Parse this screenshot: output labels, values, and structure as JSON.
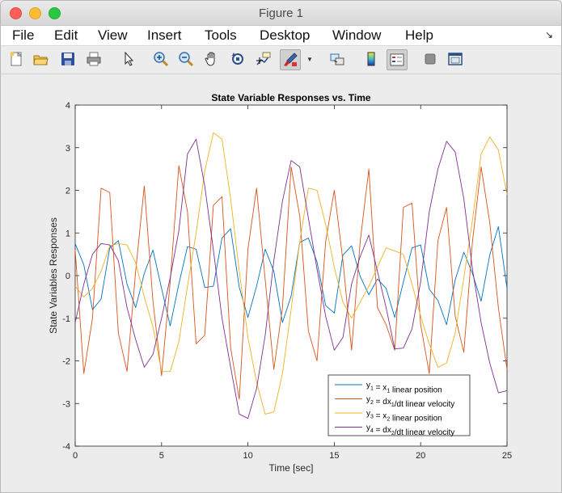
{
  "window": {
    "title": "Figure 1"
  },
  "menu": {
    "items": [
      "File",
      "Edit",
      "View",
      "Insert",
      "Tools",
      "Desktop",
      "Window",
      "Help"
    ],
    "overflow_icon": "chevron-down-icon"
  },
  "toolbar": {
    "icons": [
      "new-figure-icon",
      "open-file-icon",
      "save-icon",
      "print-icon",
      "pointer-icon",
      "zoom-in-icon",
      "zoom-out-icon",
      "pan-hand-icon",
      "rotate-3d-icon",
      "data-cursor-icon",
      "brush-icon",
      "link-plot-icon",
      "colorbar-icon",
      "legend-icon",
      "hide-plot-tools-icon",
      "show-plot-tools-icon"
    ]
  },
  "colors": {
    "y1": "#0072bd",
    "y2": "#d95319",
    "y3": "#edb120",
    "y4": "#7e2f8e"
  },
  "chart_data": {
    "type": "line",
    "title": "State Variable Responses vs. Time",
    "xlabel": "Time [sec]",
    "ylabel": "State Variables Responses",
    "xlim": [
      0,
      25
    ],
    "ylim": [
      -4,
      4
    ],
    "xticks": [
      "0",
      "5",
      "10",
      "15",
      "20",
      "25"
    ],
    "yticks": [
      "-4",
      "-3",
      "-2",
      "-1",
      "0",
      "1",
      "2",
      "3",
      "4"
    ],
    "grid": false,
    "legend_position": "bottom-right",
    "x": [
      0,
      0.5,
      1,
      1.5,
      2,
      2.5,
      3,
      3.5,
      4,
      4.5,
      5,
      5.5,
      6,
      6.5,
      7,
      7.5,
      8,
      8.5,
      9,
      9.5,
      10,
      10.5,
      11,
      11.5,
      12,
      12.5,
      13,
      13.5,
      14,
      14.5,
      15,
      15.5,
      16,
      16.5,
      17,
      17.5,
      18,
      18.5,
      19,
      19.5,
      20,
      20.5,
      21,
      21.5,
      22,
      22.5,
      23,
      23.5,
      24,
      24.5,
      25
    ],
    "series": [
      {
        "name_main": "y",
        "name_sub": "1",
        "name_rest": " = x",
        "name_rest_sub": "1",
        "name_tail": " linear position",
        "values": [
          0.75,
          0.25,
          -0.8,
          -0.55,
          0.65,
          0.82,
          -0.2,
          -0.75,
          0.05,
          0.6,
          -0.3,
          -1.18,
          -0.2,
          0.68,
          0.62,
          -0.28,
          -0.25,
          0.88,
          1.1,
          -0.28,
          -0.98,
          -0.25,
          0.62,
          0.1,
          -1.1,
          -0.48,
          0.78,
          0.88,
          0.32,
          -0.7,
          -0.88,
          0.48,
          0.7,
          -0.02,
          -0.45,
          -0.08,
          -0.3,
          -0.98,
          -0.15,
          0.65,
          0.72,
          -0.32,
          -0.58,
          -1.15,
          -0.1,
          0.55,
          0.05,
          -0.6,
          0.48,
          1.15,
          -0.3
        ]
      },
      {
        "name_main": "y",
        "name_sub": "2",
        "name_rest": " = dx",
        "name_rest_sub": "1",
        "name_tail": "/dt linear velocity",
        "values": [
          0.6,
          -2.3,
          -1.0,
          2.05,
          1.95,
          -1.35,
          -2.25,
          0.1,
          2.1,
          -0.6,
          -2.35,
          -0.15,
          2.58,
          1.5,
          -1.6,
          -1.4,
          1.65,
          1.85,
          -1.7,
          -2.9,
          0.62,
          2.05,
          -0.1,
          -2.2,
          -0.75,
          2.55,
          1.4,
          -1.3,
          -2.0,
          0.8,
          2.0,
          0.35,
          -1.75,
          0.8,
          2.5,
          -0.75,
          -1.15,
          -1.75,
          1.6,
          1.7,
          -1.15,
          -2.3,
          0.82,
          1.6,
          -0.95,
          -1.8,
          0.8,
          2.55,
          1.25,
          -0.75,
          -2.2
        ]
      },
      {
        "name_main": "y",
        "name_sub": "3",
        "name_rest": " = x",
        "name_rest_sub": "2",
        "name_tail": " linear position",
        "values": [
          -0.25,
          -0.5,
          -0.3,
          0.1,
          0.7,
          0.75,
          0.72,
          0.3,
          -0.5,
          -1.2,
          -2.25,
          -2.25,
          -1.55,
          -0.25,
          1.0,
          2.45,
          3.35,
          3.2,
          1.8,
          0.1,
          -1.45,
          -2.5,
          -3.25,
          -3.2,
          -2.3,
          -0.8,
          0.8,
          2.05,
          2.0,
          1.2,
          0.2,
          -0.62,
          -1.0,
          -0.62,
          -0.25,
          0.2,
          0.65,
          0.58,
          0.5,
          -0.2,
          -0.95,
          -1.6,
          -2.15,
          -2.05,
          -1.35,
          -0.05,
          1.3,
          2.85,
          3.25,
          2.95,
          1.9
        ]
      },
      {
        "name_main": "y",
        "name_sub": "4",
        "name_rest": " = dx",
        "name_rest_sub": "2",
        "name_tail": "/dt linear velocity",
        "values": [
          -1.1,
          -0.2,
          0.5,
          0.75,
          0.72,
          0.35,
          -0.75,
          -1.5,
          -2.15,
          -1.85,
          -1.0,
          -0.05,
          1.05,
          2.85,
          3.2,
          2.1,
          0.6,
          -1.0,
          -2.15,
          -3.25,
          -3.35,
          -2.65,
          -1.4,
          0.35,
          1.75,
          2.7,
          2.55,
          1.35,
          0.15,
          -0.95,
          -1.75,
          -1.45,
          -0.2,
          0.45,
          0.95,
          0.1,
          -0.75,
          -1.72,
          -1.7,
          -1.25,
          -0.15,
          1.5,
          2.5,
          3.15,
          2.9,
          1.8,
          0.15,
          -1.1,
          -2.05,
          -2.75,
          -2.7
        ]
      }
    ]
  }
}
